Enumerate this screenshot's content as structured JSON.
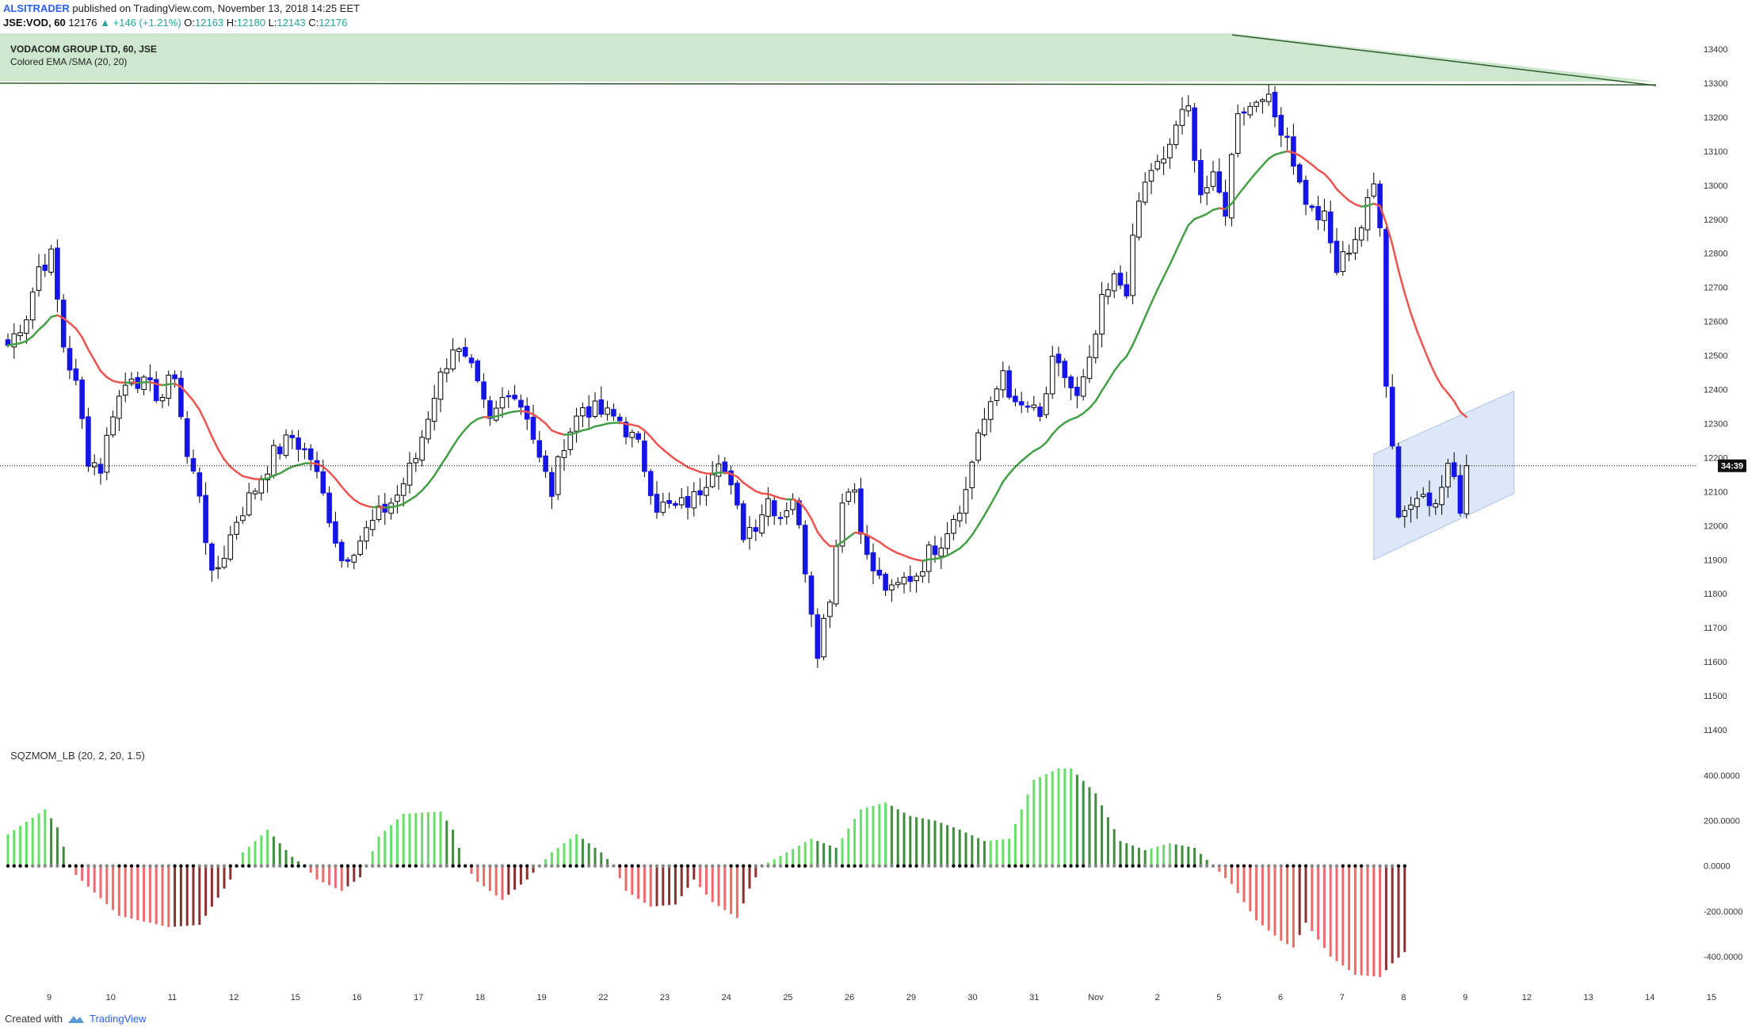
{
  "header": {
    "author": "ALSITRADER",
    "published": "published on TradingView.com, November 13, 2018 14:25 EET",
    "symbol": "JSE:VOD, 60",
    "last": "12176",
    "change": "▲ +146 (+1.21%)",
    "open_label": "O:",
    "open": "12163",
    "high_label": "H:",
    "high": "12180",
    "low_label": "L:",
    "low": "12143",
    "close_label": "C:",
    "close": "12176"
  },
  "legend": {
    "title": "VODACOM GROUP LTD, 60, JSE",
    "study": "Colored EMA /SMA (20, 20)"
  },
  "indicator": {
    "label": "SQZMOM_LB (20, 2, 20, 1.5)"
  },
  "price_badge": "34:39",
  "footer": {
    "created": "Created with",
    "brand": "TradingView"
  },
  "colors": {
    "bull": "#1515e6",
    "bear": "#000000",
    "ema_up": "#43a047",
    "ema_down": "#ef5350",
    "mom_lime": "#66e066",
    "mom_green": "#3e8e3e",
    "mom_red": "#ef6a6a",
    "mom_maroon": "#8b3030",
    "zone_fill": "#c8e6c9",
    "channel_fill": "#d6e4f7"
  },
  "chart_data": [
    {
      "type": "candlestick",
      "title": "VODACOM GROUP LTD, 60, JSE",
      "ylim": [
        11400,
        13400
      ],
      "y_ticks": [
        11400,
        11500,
        11600,
        11700,
        11800,
        11900,
        12000,
        12100,
        12200,
        12300,
        12400,
        12500,
        12600,
        12700,
        12800,
        12900,
        13000,
        13100,
        13200,
        13300,
        13400
      ],
      "x_ticks": [
        "9",
        "10",
        "11",
        "12",
        "15",
        "16",
        "17",
        "18",
        "19",
        "22",
        "23",
        "24",
        "25",
        "26",
        "29",
        "30",
        "31",
        "Nov",
        "2",
        "5",
        "6",
        "7",
        "8",
        "9",
        "12",
        "13",
        "14",
        "15"
      ],
      "last_price_line": 12176,
      "price_anchors": [
        [
          0,
          12530
        ],
        [
          3,
          12620
        ],
        [
          5,
          12760
        ],
        [
          7,
          12790
        ],
        [
          9,
          12530
        ],
        [
          11,
          12410
        ],
        [
          13,
          12200
        ],
        [
          15,
          12170
        ],
        [
          17,
          12340
        ],
        [
          20,
          12450
        ],
        [
          22,
          12410
        ],
        [
          25,
          12380
        ],
        [
          27,
          12450
        ],
        [
          29,
          12200
        ],
        [
          31,
          12100
        ],
        [
          33,
          11840
        ],
        [
          35,
          11920
        ],
        [
          37,
          12020
        ],
        [
          40,
          12110
        ],
        [
          43,
          12210
        ],
        [
          46,
          12260
        ],
        [
          49,
          12200
        ],
        [
          52,
          12030
        ],
        [
          54,
          11900
        ],
        [
          57,
          11960
        ],
        [
          60,
          12030
        ],
        [
          63,
          12090
        ],
        [
          66,
          12200
        ],
        [
          69,
          12390
        ],
        [
          72,
          12530
        ],
        [
          75,
          12450
        ],
        [
          78,
          12300
        ],
        [
          81,
          12410
        ],
        [
          84,
          12330
        ],
        [
          86,
          12190
        ],
        [
          88,
          12100
        ],
        [
          90,
          12250
        ],
        [
          93,
          12350
        ],
        [
          96,
          12330
        ],
        [
          99,
          12310
        ],
        [
          102,
          12230
        ],
        [
          105,
          12060
        ],
        [
          108,
          12050
        ],
        [
          111,
          12080
        ],
        [
          113,
          12140
        ],
        [
          115,
          12210
        ],
        [
          117,
          12100
        ],
        [
          119,
          11980
        ],
        [
          121,
          12010
        ],
        [
          123,
          12080
        ],
        [
          125,
          12030
        ],
        [
          127,
          12090
        ],
        [
          129,
          11880
        ],
        [
          131,
          11640
        ],
        [
          133,
          11800
        ],
        [
          135,
          12090
        ],
        [
          137,
          12110
        ],
        [
          139,
          11900
        ],
        [
          141,
          11840
        ],
        [
          143,
          11800
        ],
        [
          145,
          11840
        ],
        [
          147,
          11860
        ],
        [
          149,
          11920
        ],
        [
          151,
          11960
        ],
        [
          153,
          12030
        ],
        [
          155,
          12100
        ],
        [
          157,
          12280
        ],
        [
          159,
          12340
        ],
        [
          161,
          12460
        ],
        [
          163,
          12340
        ],
        [
          165,
          12350
        ],
        [
          167,
          12310
        ],
        [
          169,
          12470
        ],
        [
          171,
          12440
        ],
        [
          173,
          12370
        ],
        [
          175,
          12470
        ],
        [
          177,
          12650
        ],
        [
          179,
          12720
        ],
        [
          181,
          12700
        ],
        [
          183,
          12950
        ],
        [
          185,
          13050
        ],
        [
          187,
          13060
        ],
        [
          189,
          13180
        ],
        [
          191,
          13220
        ],
        [
          193,
          12980
        ],
        [
          195,
          13010
        ],
        [
          197,
          12930
        ],
        [
          199,
          13230
        ],
        [
          201,
          13230
        ],
        [
          203,
          13280
        ],
        [
          205,
          13200
        ],
        [
          207,
          13150
        ],
        [
          209,
          13000
        ],
        [
          211,
          12920
        ],
        [
          213,
          12900
        ],
        [
          215,
          12750
        ],
        [
          217,
          12820
        ],
        [
          219,
          12880
        ],
        [
          221,
          13000
        ],
        [
          222,
          12900
        ],
        [
          223,
          12430
        ],
        [
          225,
          12040
        ],
        [
          227,
          12060
        ],
        [
          229,
          12120
        ],
        [
          231,
          12050
        ],
        [
          233,
          12180
        ],
        [
          235,
          12060
        ],
        [
          236,
          12170
        ]
      ],
      "ema_period": 20
    },
    {
      "type": "bar",
      "title": "SQZMOM_LB (20, 2, 20, 1.5)",
      "ylim": [
        -550,
        450
      ],
      "y_ticks": [
        400,
        200,
        0,
        -200,
        -400
      ],
      "y_tick_labels": [
        "400.0000",
        "200.0000",
        "0.0000",
        "-200.0000",
        "-400.0000"
      ],
      "anchors": [
        [
          0,
          140
        ],
        [
          6,
          250
        ],
        [
          8,
          170
        ],
        [
          10,
          0
        ],
        [
          11,
          -40
        ],
        [
          18,
          -220
        ],
        [
          26,
          -270
        ],
        [
          31,
          -260
        ],
        [
          36,
          -60
        ],
        [
          38,
          60
        ],
        [
          42,
          160
        ],
        [
          46,
          40
        ],
        [
          48,
          0
        ],
        [
          50,
          -60
        ],
        [
          54,
          -110
        ],
        [
          57,
          -50
        ],
        [
          58,
          0
        ],
        [
          60,
          130
        ],
        [
          64,
          230
        ],
        [
          70,
          240
        ],
        [
          72,
          160
        ],
        [
          74,
          0
        ],
        [
          76,
          -70
        ],
        [
          80,
          -150
        ],
        [
          84,
          -60
        ],
        [
          86,
          0
        ],
        [
          88,
          60
        ],
        [
          92,
          140
        ],
        [
          96,
          60
        ],
        [
          98,
          0
        ],
        [
          100,
          -110
        ],
        [
          104,
          -180
        ],
        [
          108,
          -170
        ],
        [
          111,
          -60
        ],
        [
          114,
          -160
        ],
        [
          118,
          -230
        ],
        [
          120,
          -100
        ],
        [
          122,
          0
        ],
        [
          126,
          60
        ],
        [
          130,
          120
        ],
        [
          134,
          80
        ],
        [
          138,
          250
        ],
        [
          142,
          280
        ],
        [
          146,
          220
        ],
        [
          150,
          200
        ],
        [
          154,
          160
        ],
        [
          158,
          110
        ],
        [
          162,
          120
        ],
        [
          166,
          380
        ],
        [
          170,
          430
        ],
        [
          172,
          430
        ],
        [
          176,
          320
        ],
        [
          180,
          110
        ],
        [
          184,
          70
        ],
        [
          188,
          100
        ],
        [
          192,
          80
        ],
        [
          195,
          0
        ],
        [
          198,
          -80
        ],
        [
          202,
          -240
        ],
        [
          206,
          -330
        ],
        [
          208,
          -360
        ],
        [
          210,
          -250
        ],
        [
          214,
          -400
        ],
        [
          218,
          -480
        ],
        [
          222,
          -490
        ],
        [
          224,
          -430
        ],
        [
          226,
          -380
        ]
      ]
    }
  ]
}
